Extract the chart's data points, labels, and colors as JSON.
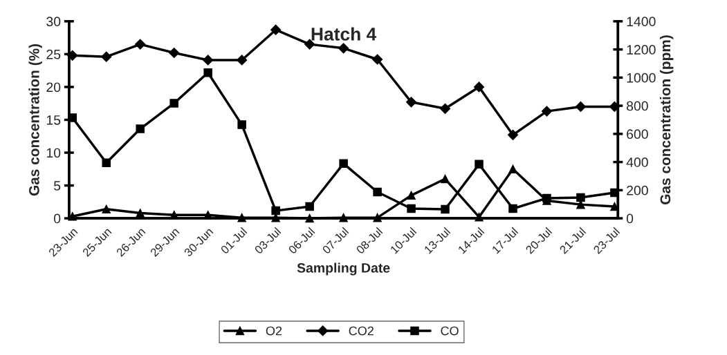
{
  "chart_data": {
    "type": "line",
    "title": "Hatch 4",
    "xlabel": "Sampling Date",
    "ylabel": "Gas concentration (%)",
    "y2label": "Gas concentration (ppm)",
    "categories": [
      "23-Jun",
      "25-Jun",
      "26-Jun",
      "29-Jun",
      "30-Jun",
      "01-Jul",
      "03-Jul",
      "06-Jul",
      "07-Jul",
      "08-Jul",
      "10-Jul",
      "13-Jul",
      "14-Jul",
      "17-Jul",
      "20-Jul",
      "21-Jul",
      "23-Jul"
    ],
    "series": [
      {
        "name": "O2",
        "color": "#000000",
        "marker": "triangle",
        "values": [
          0.3,
          1.4,
          0.8,
          0.5,
          0.5,
          0.1,
          0.1,
          0.0,
          0.1,
          0.1,
          3.5,
          6.0,
          0.2,
          7.5,
          2.7,
          2.1,
          1.8
        ]
      },
      {
        "name": "CO2",
        "color": "#000000",
        "marker": "diamond",
        "values": [
          24.8,
          24.6,
          26.5,
          25.2,
          24.1,
          24.1,
          28.7,
          26.5,
          25.9,
          24.2,
          17.7,
          16.7,
          20.0,
          12.7,
          16.3,
          17.0,
          17.0
        ]
      },
      {
        "name": "CO",
        "color": "#000000",
        "marker": "square",
        "axis": "y2",
        "values": [
          715,
          394,
          636,
          818,
          1035,
          665,
          54,
          84,
          389,
          187,
          69,
          64,
          384,
          69,
          143,
          148,
          182
        ]
      }
    ],
    "ylim": [
      0,
      30
    ],
    "yticks": [
      0,
      5,
      10,
      15,
      20,
      25,
      30
    ],
    "y2lim": [
      0,
      1400
    ],
    "y2ticks": [
      0,
      200,
      400,
      600,
      800,
      1000,
      1200,
      1400
    ],
    "grid": false,
    "legend": "bottom",
    "line_style": "solid"
  }
}
